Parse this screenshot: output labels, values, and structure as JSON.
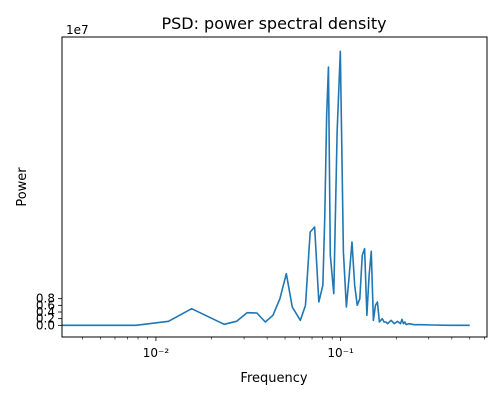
{
  "chart_data": {
    "type": "line",
    "title": "PSD: power spectral density",
    "xlabel": "Frequency",
    "ylabel": "Power",
    "x_scale": "log",
    "xlim": [
      0.0031,
      0.62
    ],
    "ylim": [
      -0.35,
      8.65
    ],
    "y_offset_label": "1e7",
    "y_ticks": [
      0.0,
      0.2,
      0.4,
      0.6,
      0.8
    ],
    "y_tick_labels": [
      "0.0",
      "0.2",
      "0.4",
      "0.6",
      "0.8"
    ],
    "x_major_ticks": [
      0.01,
      0.1
    ],
    "x_tick_labels": [
      "10⁻²",
      "10⁻¹"
    ],
    "grid": false,
    "color": "#1f77b4",
    "series": [
      {
        "x": [
          0.0031,
          0.0078,
          0.0117,
          0.0156,
          0.0234,
          0.0273,
          0.0312,
          0.0352,
          0.0391,
          0.043,
          0.0469,
          0.0508,
          0.0547,
          0.0605,
          0.0645,
          0.0684,
          0.0723,
          0.0762,
          0.0801,
          0.082,
          0.084,
          0.0859,
          0.0879,
          0.0918,
          0.0957,
          0.0996,
          0.1035,
          0.1074,
          0.1113,
          0.1152,
          0.1191,
          0.123,
          0.127,
          0.1309,
          0.1348,
          0.1387,
          0.1426,
          0.1465,
          0.1504,
          0.1543,
          0.1582,
          0.1621,
          0.168,
          0.1719,
          0.1758,
          0.1797,
          0.1875,
          0.1953,
          0.2031,
          0.2109,
          0.2148,
          0.2188,
          0.2227,
          0.2266,
          0.2344,
          0.25,
          0.2734,
          0.3125,
          0.3906,
          0.5
        ],
        "y": [
          0.0,
          0.0,
          0.12,
          0.5,
          0.03,
          0.12,
          0.38,
          0.37,
          0.1,
          0.3,
          0.8,
          1.55,
          0.55,
          0.15,
          0.6,
          2.8,
          2.95,
          0.7,
          1.2,
          3.2,
          6.3,
          7.75,
          2.1,
          0.95,
          5.8,
          8.22,
          2.2,
          0.55,
          1.5,
          2.5,
          1.2,
          0.6,
          0.8,
          2.1,
          2.3,
          0.3,
          1.5,
          2.22,
          0.15,
          0.6,
          0.7,
          0.1,
          0.2,
          0.1,
          0.1,
          0.05,
          0.15,
          0.05,
          0.12,
          0.05,
          0.18,
          0.05,
          0.1,
          0.02,
          0.05,
          0.02,
          0.02,
          0.01,
          0.0,
          0.0
        ]
      }
    ]
  }
}
